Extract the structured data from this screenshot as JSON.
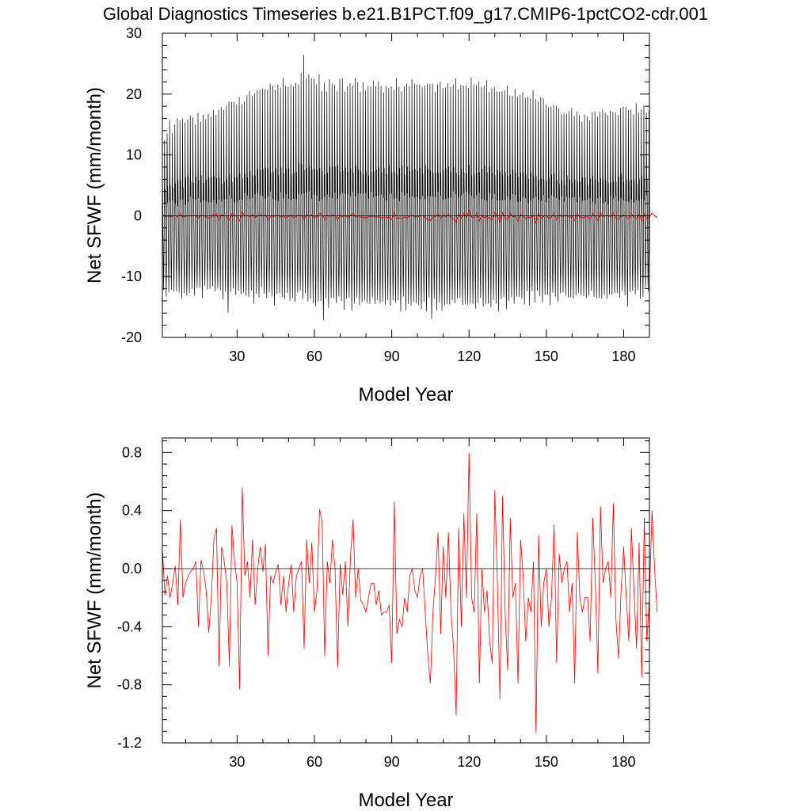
{
  "figure": {
    "title": "Global Diagnostics Timeseries b.e21.B1PCT.f09_g17.CMIP6-1pctCO2-cdr.001"
  },
  "colors": {
    "monthly": "#000000",
    "annual": "#ff0000",
    "axes": "#000000"
  },
  "chart_data": [
    {
      "type": "line",
      "xlabel": "Model Year",
      "ylabel": "Net SFWF (mm/month)",
      "xlim": [
        1,
        190
      ],
      "ylim": [
        -20,
        30
      ],
      "xticks": [
        30,
        60,
        90,
        120,
        150,
        180
      ],
      "yticks": [
        -20,
        -10,
        0,
        10,
        20,
        30
      ],
      "ytick_labels": [
        "-20",
        "-10",
        "0",
        "10",
        "20",
        "30"
      ],
      "zero_line": true,
      "grid": false,
      "series": [
        {
          "key": "monthly",
          "color": "#000000",
          "approx_monthly_max_by_year": [
            13,
            14,
            15,
            14,
            15,
            16,
            15,
            16,
            15,
            16,
            17,
            16,
            15,
            17,
            16,
            17,
            16,
            17,
            16,
            18,
            17,
            17,
            18,
            17,
            18,
            19,
            18,
            18,
            19,
            19,
            19,
            19,
            20,
            20,
            20,
            20,
            21,
            20,
            21,
            21,
            21,
            21,
            22,
            21,
            22,
            21,
            22,
            22,
            21,
            22,
            21,
            22,
            22,
            23,
            26,
            22,
            23,
            22,
            23,
            22,
            23,
            21,
            22,
            21,
            22,
            22,
            22,
            21,
            22,
            22,
            21,
            22,
            22,
            21,
            22,
            22,
            21,
            22,
            21,
            22,
            21,
            22,
            21,
            22,
            21,
            21,
            22,
            21,
            22,
            21,
            22,
            21,
            21,
            22,
            21,
            21,
            22,
            21,
            21,
            22,
            21,
            21,
            22,
            21,
            22,
            21,
            21,
            22,
            21,
            21,
            22,
            21,
            21,
            22,
            21,
            21,
            22,
            21,
            21,
            22,
            21,
            21,
            22,
            21,
            21,
            22,
            21,
            21,
            21,
            21,
            20,
            21,
            20,
            21,
            20,
            20,
            21,
            20,
            20,
            20,
            19,
            20,
            19,
            20,
            19,
            19,
            19,
            19,
            18,
            18,
            18,
            18,
            18,
            17,
            17,
            17,
            16,
            17,
            17,
            16,
            17,
            17,
            16,
            17,
            17,
            16,
            17,
            17,
            17,
            17,
            17,
            17,
            17,
            17,
            17,
            17,
            17,
            18,
            18,
            18,
            17,
            18,
            17,
            18,
            17,
            17,
            18,
            17,
            18,
            17
          ],
          "approx_monthly_min_by_year": [
            -12,
            -13,
            -12,
            -12,
            -13,
            -12,
            -12,
            -13,
            -12,
            -13,
            -12,
            -12,
            -13,
            -12,
            -12,
            -13,
            -12,
            -12,
            -12,
            -12,
            -13,
            -12,
            -12,
            -13,
            -12,
            -16,
            -13,
            -12,
            -13,
            -12,
            -13,
            -12,
            -13,
            -13,
            -12,
            -14,
            -13,
            -13,
            -12,
            -13,
            -14,
            -13,
            -13,
            -14,
            -13,
            -13,
            -14,
            -13,
            -13,
            -14,
            -13,
            -14,
            -13,
            -13,
            -14,
            -13,
            -14,
            -14,
            -14,
            -15,
            -14,
            -14,
            -17,
            -14,
            -15,
            -14,
            -14,
            -15,
            -14,
            -14,
            -15,
            -14,
            -14,
            -15,
            -14,
            -14,
            -15,
            -14,
            -14,
            -15,
            -14,
            -14,
            -15,
            -14,
            -15,
            -14,
            -15,
            -14,
            -15,
            -14,
            -15,
            -14,
            -15,
            -14,
            -15,
            -14,
            -15,
            -14,
            -15,
            -14,
            -15,
            -14,
            -15,
            -14,
            -17,
            -14,
            -15,
            -14,
            -15,
            -14,
            -15,
            -14,
            -14,
            -15,
            -14,
            -14,
            -15,
            -14,
            -15,
            -14,
            -14,
            -15,
            -14,
            -14,
            -15,
            -14,
            -14,
            -15,
            -14,
            -14,
            -15,
            -14,
            -14,
            -15,
            -14,
            -13,
            -14,
            -14,
            -13,
            -14,
            -14,
            -13,
            -14,
            -13,
            -14,
            -13,
            -13,
            -14,
            -13,
            -13,
            -14,
            -13,
            -13,
            -14,
            -13,
            -13,
            -13,
            -13,
            -14,
            -13,
            -13,
            -13,
            -13,
            -13,
            -13,
            -13,
            -13,
            -13,
            -13,
            -13,
            -13,
            -13,
            -13,
            -13,
            -13,
            -13,
            -13,
            -13,
            -13,
            -13,
            -15,
            -13,
            -13,
            -13,
            -12,
            -13,
            -13,
            -12,
            -13,
            -12
          ]
        },
        {
          "key": "annual",
          "color": "#ff0000",
          "values_ref": "chart_data.1.series.0.values"
        }
      ]
    },
    {
      "type": "line",
      "xlabel": "Model Year",
      "ylabel": "Net SFWF (mm/month)",
      "xlim": [
        1,
        190
      ],
      "ylim": [
        -1.2,
        0.9
      ],
      "xticks": [
        30,
        60,
        90,
        120,
        150,
        180
      ],
      "yticks": [
        -1.2,
        -0.8,
        -0.4,
        0.0,
        0.4,
        0.8
      ],
      "ytick_labels": [
        "-1.2",
        "-0.8",
        "-0.4",
        "0.0",
        "0.4",
        "0.8"
      ],
      "zero_line": true,
      "grid": false,
      "series": [
        {
          "key": "annual",
          "color": "#ff0000",
          "x_start": 1,
          "values": [
            0.14,
            -0.18,
            -0.05,
            -0.2,
            -0.1,
            0.02,
            -0.25,
            0.34,
            -0.2,
            -0.1,
            -0.05,
            -0.02,
            0.0,
            0.05,
            -0.4,
            0.06,
            -0.02,
            -0.15,
            -0.44,
            -0.2,
            0.2,
            0.28,
            -0.67,
            0.15,
            0.05,
            -0.1,
            -0.67,
            0.3,
            0.05,
            -0.1,
            -0.83,
            0.56,
            -0.05,
            0.05,
            -0.2,
            0.2,
            -0.25,
            0.0,
            0.15,
            -0.02,
            0.17,
            -0.6,
            -0.05,
            -0.1,
            -0.02,
            0.03,
            -0.25,
            -0.05,
            -0.3,
            -0.1,
            0.03,
            -0.3,
            -0.05,
            0.0,
            0.05,
            -0.55,
            0.2,
            -0.1,
            0.18,
            -0.3,
            -0.15,
            0.41,
            0.32,
            -0.6,
            0.05,
            -0.1,
            0.2,
            0.0,
            -0.68,
            0.03,
            -0.18,
            0.05,
            -0.4,
            0.08,
            0.34,
            -0.2,
            0.0,
            -0.22,
            -0.25,
            -0.3,
            -0.2,
            -0.1,
            -0.1,
            -0.25,
            -0.15,
            -0.32,
            -0.3,
            -0.3,
            -0.25,
            -0.65,
            0.46,
            -0.45,
            -0.35,
            -0.4,
            -0.2,
            -0.3,
            -0.05,
            0.0,
            -0.15,
            -0.2,
            -0.05,
            0.0,
            -0.3,
            -0.6,
            -0.79,
            -0.3,
            -0.05,
            0.25,
            -0.45,
            0.15,
            -0.2,
            0.25,
            -0.3,
            -0.55,
            -1.01,
            0.28,
            -0.4,
            0.38,
            -0.2,
            0.8,
            -0.2,
            -0.3,
            0.38,
            -0.79,
            0.0,
            -0.3,
            -0.15,
            -0.5,
            -0.65,
            0.54,
            -0.1,
            -0.9,
            0.5,
            -0.3,
            -0.7,
            0.35,
            -0.2,
            -0.1,
            -0.79,
            0.2,
            -0.05,
            -0.5,
            -0.2,
            -0.3,
            0.05,
            -1.13,
            0.23,
            -0.4,
            -0.1,
            0.0,
            -0.4,
            -0.2,
            0.3,
            -0.65,
            0.1,
            -0.1,
            0.0,
            0.05,
            -0.3,
            -0.1,
            -0.79,
            0.25,
            -0.2,
            -0.3,
            -0.2,
            -0.2,
            -0.5,
            0.35,
            -0.1,
            -0.72,
            0.43,
            -0.1,
            0.0,
            0.05,
            -0.2,
            0.45,
            -0.35,
            -0.62,
            -0.15,
            0.15,
            -0.2,
            -0.5,
            0.28,
            -0.15,
            -0.55,
            0.18,
            -0.75,
            0.35,
            -0.5,
            -0.2,
            0.4,
            0.0,
            -0.3
          ]
        }
      ]
    }
  ]
}
